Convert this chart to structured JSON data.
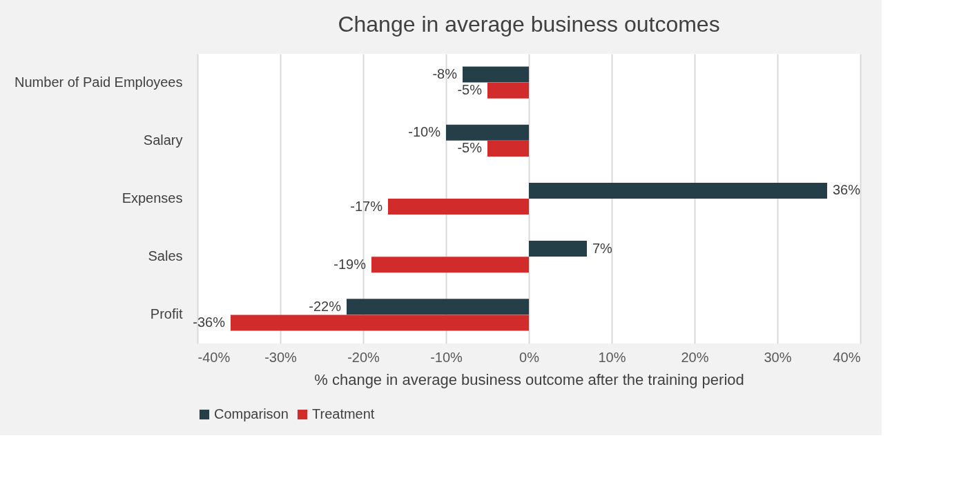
{
  "chart_data": {
    "type": "bar",
    "orientation": "horizontal",
    "title": "Change in average business outcomes",
    "xlabel": "% change in average business outcome after the training period",
    "categories": [
      "Number of Paid Employees",
      "Salary",
      "Expenses",
      "Sales",
      "Profit"
    ],
    "series": [
      {
        "name": "Comparison",
        "color": "#243f47",
        "values": [
          -8,
          -10,
          36,
          7,
          -22
        ],
        "value_labels": [
          "-8%",
          "-10%",
          "36%",
          "7%",
          "-22%"
        ]
      },
      {
        "name": "Treatment",
        "color": "#d12b2b",
        "values": [
          -5,
          -5,
          -17,
          -19,
          -36
        ],
        "value_labels": [
          "-5%",
          "-5%",
          "-17%",
          "-19%",
          "-36%"
        ]
      }
    ],
    "xlim": [
      -40,
      40
    ],
    "xticks": [
      {
        "value": -40,
        "label": "-40%"
      },
      {
        "value": -30,
        "label": "-30%"
      },
      {
        "value": -20,
        "label": "-20%"
      },
      {
        "value": -10,
        "label": "-10%"
      },
      {
        "value": 0,
        "label": "0%"
      },
      {
        "value": 10,
        "label": "10%"
      },
      {
        "value": 20,
        "label": "20%"
      },
      {
        "value": 30,
        "label": "30%"
      },
      {
        "value": 40,
        "label": "40%"
      }
    ],
    "grid": "x",
    "legend": "bottom"
  }
}
